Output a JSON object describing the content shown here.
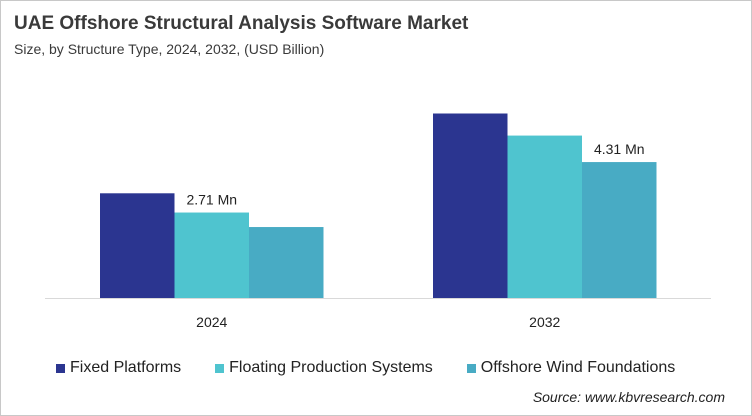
{
  "chart_data": {
    "type": "bar",
    "title": "UAE Offshore Structural Analysis Software Market",
    "subtitle": "Size, by Structure Type, 2024, 2032, (USD Billion)",
    "categories": [
      "2024",
      "2032"
    ],
    "series": [
      {
        "name": "Fixed Platforms",
        "color": "#2b3590",
        "values": [
          3.32,
          5.85
        ]
      },
      {
        "name": "Floating Production Systems",
        "color": "#4fc4cf",
        "values": [
          2.71,
          5.15
        ]
      },
      {
        "name": "Offshore Wind Foundations",
        "color": "#48abc4",
        "values": [
          2.25,
          4.31
        ]
      }
    ],
    "data_labels": [
      {
        "series": 1,
        "category": 0,
        "text": "2.71 Mn"
      },
      {
        "series": 2,
        "category": 1,
        "text": "4.31 Mn"
      }
    ],
    "ylim": [
      0,
      6.5
    ],
    "grid": false,
    "legend": "bottom",
    "source": "Source: www.kbvresearch.com"
  }
}
